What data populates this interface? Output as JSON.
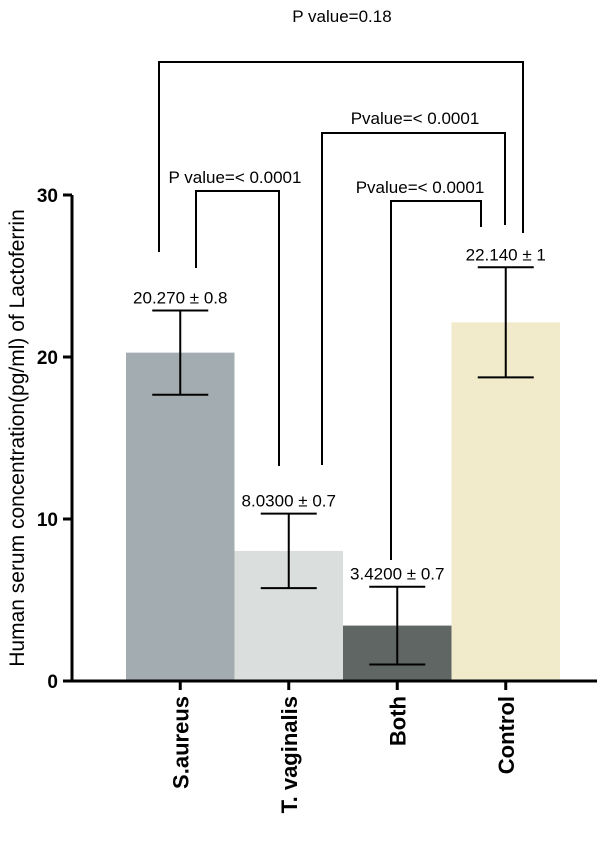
{
  "chart_data": {
    "type": "bar",
    "title": "",
    "xlabel": "",
    "ylabel": "Human serum concentration(pg/ml) of Lactoferrin",
    "ylim": [
      0,
      30
    ],
    "yticks": [
      "0",
      "10",
      "20",
      "30"
    ],
    "categories": [
      "S.aureus",
      "T. vaginalis",
      "Both",
      "Control"
    ],
    "values": [
      20.27,
      8.03,
      3.42,
      22.14
    ],
    "errors": [
      2.6,
      2.3,
      2.4,
      3.4
    ],
    "data_labels": [
      "20.270 ± 0.8",
      "8.0300 ± 0.7",
      "3.4200 ± 0.7",
      "22.140 ± 1"
    ],
    "colors": [
      "#a3acb0",
      "#dadfdd",
      "#606663",
      "#f1ebcb"
    ],
    "comparisons": [
      {
        "from": "S.aureus",
        "to": "Control",
        "label": "P value=0.18"
      },
      {
        "from": "T. vaginalis",
        "to": "Control",
        "label": "Pvalue=< 0.0001"
      },
      {
        "from": "S.aureus",
        "to": "T. vaginalis",
        "label": "P value=< 0.0001"
      },
      {
        "from": "Both",
        "to": "Control",
        "label": "Pvalue=< 0.0001"
      }
    ]
  }
}
